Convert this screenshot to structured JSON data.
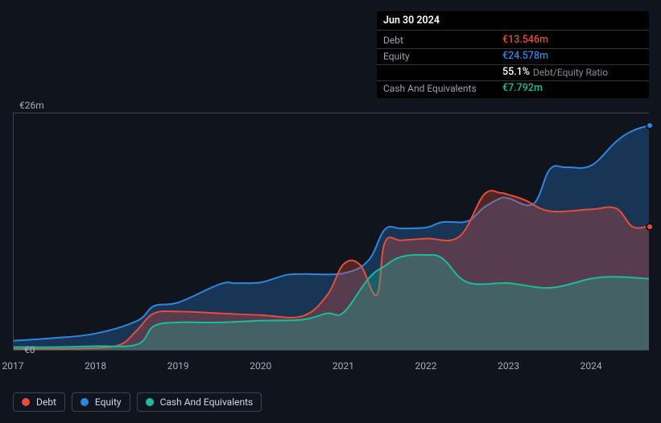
{
  "tooltip": {
    "date": "Jun 30 2024",
    "rows": [
      {
        "label": "Debt",
        "value": "€13.546m",
        "color": "#e74c3c"
      },
      {
        "label": "Equity",
        "value": "€24.578m",
        "color": "#2e86de"
      },
      {
        "label": "",
        "value": "55.1%",
        "color": "#ffffff",
        "suffix": "Debt/Equity Ratio"
      },
      {
        "label": "Cash And Equivalents",
        "value": "€7.792m",
        "color": "#1abc9c"
      }
    ]
  },
  "chart": {
    "type": "area",
    "background_color": "#10141c",
    "grid_color": "#3a4150",
    "y_axis": {
      "min": 0,
      "max": 26,
      "top_label": "€26m",
      "bottom_label": "€0"
    },
    "x_axis": {
      "min": 2017,
      "max": 2024.7,
      "tick_years": [
        2017,
        2018,
        2019,
        2020,
        2021,
        2022,
        2023,
        2024
      ]
    },
    "series": [
      {
        "name": "Debt",
        "color": "#e74c3c",
        "fill": "rgba(231,76,60,0.30)",
        "points": [
          [
            2017.0,
            0.1
          ],
          [
            2017.5,
            0.1
          ],
          [
            2018.0,
            0.2
          ],
          [
            2018.3,
            0.6
          ],
          [
            2018.5,
            2.2
          ],
          [
            2018.7,
            4.0
          ],
          [
            2019.0,
            4.2
          ],
          [
            2019.5,
            4.0
          ],
          [
            2020.0,
            3.8
          ],
          [
            2020.5,
            3.7
          ],
          [
            2020.8,
            6.0
          ],
          [
            2021.0,
            9.4
          ],
          [
            2021.2,
            9.3
          ],
          [
            2021.4,
            6.0
          ],
          [
            2021.5,
            11.8
          ],
          [
            2021.7,
            12.0
          ],
          [
            2022.0,
            12.2
          ],
          [
            2022.4,
            12.4
          ],
          [
            2022.7,
            17.0
          ],
          [
            2022.9,
            17.2
          ],
          [
            2023.0,
            17.0
          ],
          [
            2023.2,
            16.4
          ],
          [
            2023.5,
            15.2
          ],
          [
            2024.0,
            15.4
          ],
          [
            2024.3,
            15.5
          ],
          [
            2024.5,
            13.5
          ],
          [
            2024.7,
            13.546
          ]
        ]
      },
      {
        "name": "Equity",
        "color": "#2e86de",
        "fill": "rgba(46,134,222,0.30)",
        "points": [
          [
            2017.0,
            1.0
          ],
          [
            2017.5,
            1.3
          ],
          [
            2018.0,
            1.8
          ],
          [
            2018.5,
            3.2
          ],
          [
            2018.7,
            4.8
          ],
          [
            2019.0,
            5.2
          ],
          [
            2019.5,
            7.2
          ],
          [
            2019.7,
            7.3
          ],
          [
            2020.0,
            7.4
          ],
          [
            2020.3,
            8.2
          ],
          [
            2020.5,
            8.3
          ],
          [
            2021.0,
            8.4
          ],
          [
            2021.3,
            9.8
          ],
          [
            2021.5,
            13.2
          ],
          [
            2021.7,
            13.3
          ],
          [
            2022.0,
            13.4
          ],
          [
            2022.2,
            14.0
          ],
          [
            2022.5,
            14.1
          ],
          [
            2022.7,
            15.6
          ],
          [
            2022.9,
            16.6
          ],
          [
            2023.0,
            16.6
          ],
          [
            2023.3,
            16.0
          ],
          [
            2023.5,
            19.8
          ],
          [
            2023.7,
            20.0
          ],
          [
            2024.0,
            20.2
          ],
          [
            2024.3,
            22.8
          ],
          [
            2024.5,
            24.0
          ],
          [
            2024.7,
            24.578
          ]
        ]
      },
      {
        "name": "Cash And Equivalents",
        "color": "#1abc9c",
        "fill": "rgba(26,188,156,0.30)",
        "points": [
          [
            2017.0,
            0.3
          ],
          [
            2017.5,
            0.3
          ],
          [
            2018.0,
            0.4
          ],
          [
            2018.5,
            0.6
          ],
          [
            2018.7,
            2.6
          ],
          [
            2019.0,
            3.0
          ],
          [
            2019.5,
            3.0
          ],
          [
            2020.0,
            3.2
          ],
          [
            2020.5,
            3.3
          ],
          [
            2020.8,
            4.0
          ],
          [
            2021.0,
            4.1
          ],
          [
            2021.3,
            7.8
          ],
          [
            2021.5,
            9.2
          ],
          [
            2021.7,
            10.2
          ],
          [
            2022.0,
            10.4
          ],
          [
            2022.2,
            10.0
          ],
          [
            2022.5,
            7.4
          ],
          [
            2023.0,
            7.3
          ],
          [
            2023.5,
            6.8
          ],
          [
            2024.0,
            7.8
          ],
          [
            2024.3,
            8.0
          ],
          [
            2024.7,
            7.792
          ]
        ]
      }
    ],
    "end_markers": [
      {
        "series": "Equity",
        "color": "#2e86de"
      },
      {
        "series": "Debt",
        "color": "#e74c3c"
      }
    ]
  },
  "legend": [
    {
      "label": "Debt",
      "color": "#e74c3c"
    },
    {
      "label": "Equity",
      "color": "#2e86de"
    },
    {
      "label": "Cash And Equivalents",
      "color": "#1abc9c"
    }
  ]
}
